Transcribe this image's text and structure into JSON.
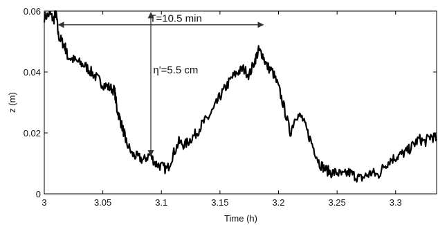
{
  "chart_data": {
    "type": "line",
    "xlabel": "Time (h)",
    "ylabel": "z (m)",
    "xlim": [
      3.0,
      3.335
    ],
    "ylim": [
      0.0,
      0.06
    ],
    "xticks": [
      3.0,
      3.05,
      3.1,
      3.15,
      3.2,
      3.25,
      3.3
    ],
    "xtick_labels": [
      "3",
      "3.05",
      "3.1",
      "3.15",
      "3.2",
      "3.25",
      "3.3"
    ],
    "yticks": [
      0.0,
      0.02,
      0.04,
      0.06
    ],
    "ytick_labels": [
      "0",
      "0.02",
      "0.04",
      "0.06"
    ],
    "grid": false,
    "series": [
      {
        "color": "#000000",
        "x": [
          3.0,
          3.005,
          3.008,
          3.01,
          3.012,
          3.015,
          3.018,
          3.02,
          3.025,
          3.03,
          3.035,
          3.04,
          3.045,
          3.05,
          3.055,
          3.06,
          3.062,
          3.065,
          3.068,
          3.07,
          3.075,
          3.08,
          3.085,
          3.09,
          3.095,
          3.1,
          3.105,
          3.11,
          3.115,
          3.12,
          3.125,
          3.13,
          3.135,
          3.14,
          3.145,
          3.15,
          3.155,
          3.16,
          3.165,
          3.17,
          3.175,
          3.18,
          3.183,
          3.186,
          3.19,
          3.195,
          3.2,
          3.205,
          3.21,
          3.215,
          3.22,
          3.225,
          3.23,
          3.235,
          3.24,
          3.245,
          3.25,
          3.255,
          3.26,
          3.265,
          3.27,
          3.275,
          3.28,
          3.285,
          3.29,
          3.295,
          3.3,
          3.305,
          3.31,
          3.315,
          3.32,
          3.325,
          3.33,
          3.335
        ],
        "y": [
          0.058,
          0.059,
          0.057,
          0.06,
          0.052,
          0.05,
          0.048,
          0.045,
          0.044,
          0.043,
          0.042,
          0.04,
          0.038,
          0.036,
          0.035,
          0.034,
          0.028,
          0.024,
          0.02,
          0.017,
          0.013,
          0.012,
          0.011,
          0.013,
          0.01,
          0.009,
          0.008,
          0.013,
          0.017,
          0.016,
          0.018,
          0.02,
          0.023,
          0.025,
          0.028,
          0.032,
          0.035,
          0.038,
          0.04,
          0.041,
          0.039,
          0.044,
          0.047,
          0.046,
          0.042,
          0.04,
          0.035,
          0.028,
          0.02,
          0.026,
          0.025,
          0.02,
          0.015,
          0.01,
          0.008,
          0.007,
          0.007,
          0.006,
          0.007,
          0.006,
          0.005,
          0.006,
          0.007,
          0.006,
          0.009,
          0.011,
          0.012,
          0.013,
          0.014,
          0.016,
          0.018,
          0.017,
          0.019,
          0.018
        ]
      }
    ],
    "annotations": [
      {
        "type": "double-arrow-horizontal",
        "label": "T=10.5 min",
        "x_start": 3.012,
        "x_end": 3.187,
        "y": 0.0555,
        "label_x": 3.09,
        "label_y": 0.0565
      },
      {
        "type": "double-arrow-vertical",
        "label": "η'=5.5 cm",
        "x": 3.091,
        "y_start": 0.0595,
        "y_end": 0.0125,
        "label_x": 3.093,
        "label_y": 0.0395
      }
    ]
  }
}
